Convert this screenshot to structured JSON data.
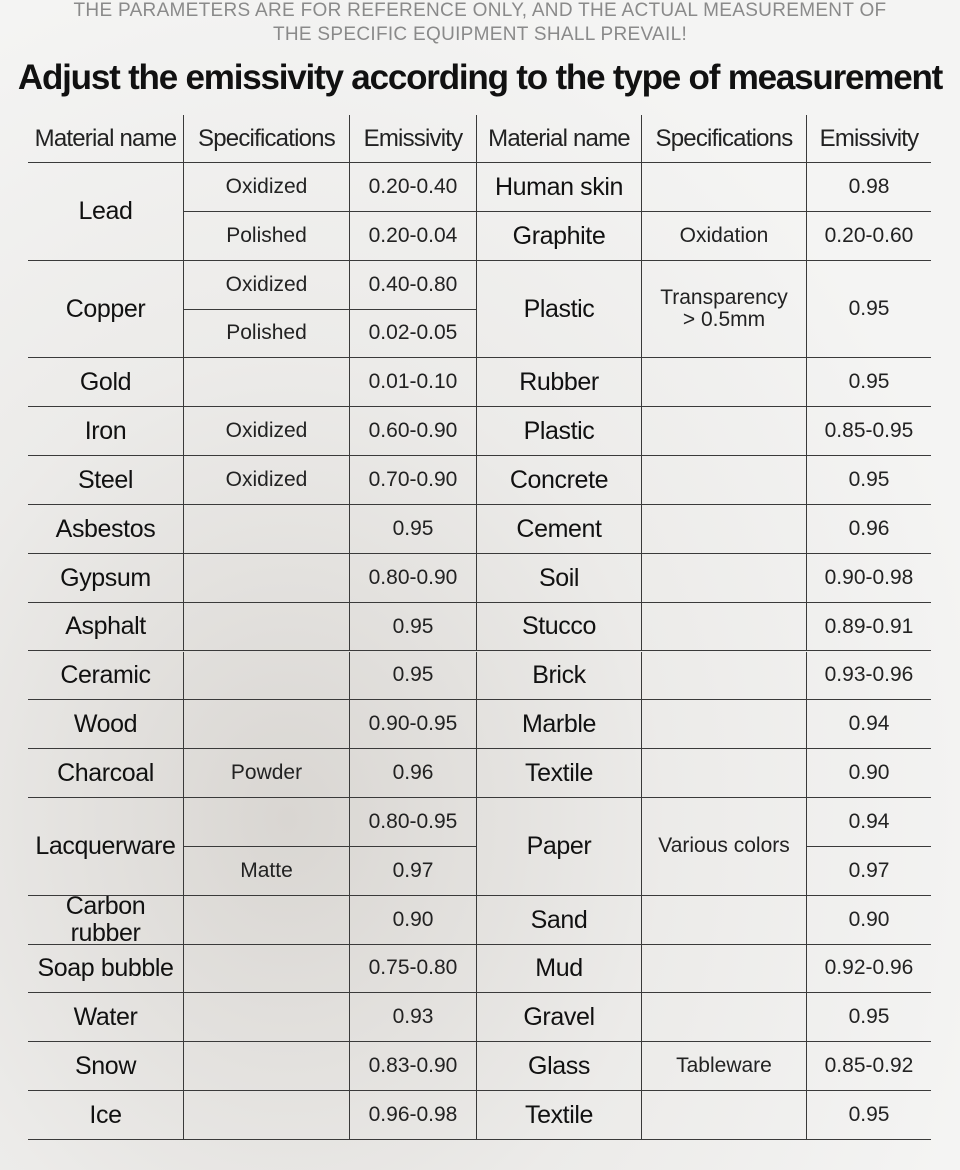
{
  "notice": [
    "THE PARAMETERS ARE FOR REFERENCE ONLY, AND THE ACTUAL MEASUREMENT OF",
    "THE SPECIFIC EQUIPMENT SHALL PREVAIL!"
  ],
  "title": "Adjust the emissivity according to the type of measurement",
  "headers": [
    "Material name",
    "Specifications",
    "Emissivity",
    "Material name",
    "Specifications",
    "Emissivity"
  ],
  "left": [
    {
      "material": "Lead",
      "specs": [
        "Oxidized",
        "Polished"
      ],
      "emissivity": [
        "0.20-0.40",
        "0.20-0.04"
      ]
    },
    {
      "material": "Copper",
      "specs": [
        "Oxidized",
        "Polished"
      ],
      "emissivity": [
        "0.40-0.80",
        "0.02-0.05"
      ]
    },
    {
      "material": "Gold",
      "emissivity": [
        "0.01-0.10"
      ]
    },
    {
      "material": "Iron",
      "specs": [
        "Oxidized"
      ],
      "emissivity": [
        "0.60-0.90"
      ]
    },
    {
      "material": "Steel",
      "specs": [
        "Oxidized"
      ],
      "emissivity": [
        "0.70-0.90"
      ]
    },
    {
      "material": "Asbestos",
      "emissivity": [
        "0.95"
      ]
    },
    {
      "material": "Gypsum",
      "emissivity": [
        "0.80-0.90"
      ]
    },
    {
      "material": "Asphalt",
      "emissivity": [
        "0.95"
      ]
    },
    {
      "material": "Ceramic",
      "emissivity": [
        "0.95"
      ]
    },
    {
      "material": "Wood",
      "emissivity": [
        "0.90-0.95"
      ]
    },
    {
      "material": "Charcoal",
      "specs": [
        "Powder"
      ],
      "emissivity": [
        "0.96"
      ]
    },
    {
      "material": "Lacquerware",
      "specs": [
        null,
        "Matte"
      ],
      "emissivity": [
        "0.80-0.95",
        "0.97"
      ]
    },
    {
      "material": "Carbon rubber",
      "emissivity": [
        "0.90"
      ]
    },
    {
      "material": "Soap bubble",
      "emissivity": [
        "0.75-0.80"
      ]
    },
    {
      "material": "Water",
      "emissivity": [
        "0.93"
      ]
    },
    {
      "material": "Snow",
      "emissivity": [
        "0.83-0.90"
      ]
    },
    {
      "material": "Ice",
      "emissivity": [
        "0.96-0.98"
      ]
    }
  ],
  "right": [
    {
      "material": "Human skin",
      "emissivity": [
        "0.98"
      ]
    },
    {
      "material": "Graphite",
      "specs": [
        "Oxidation"
      ],
      "emissivity": [
        "0.20-0.60"
      ]
    },
    {
      "material": "Plastic",
      "specs": [
        "Transparency\n> 0.5mm"
      ],
      "emissivity": [
        "0.95"
      ]
    },
    {
      "material": "Rubber",
      "emissivity": [
        "0.95"
      ]
    },
    {
      "material": "Plastic",
      "emissivity": [
        "0.85-0.95"
      ]
    },
    {
      "material": "Concrete",
      "emissivity": [
        "0.95"
      ]
    },
    {
      "material": "Cement",
      "emissivity": [
        "0.96"
      ]
    },
    {
      "material": "Soil",
      "emissivity": [
        "0.90-0.98"
      ]
    },
    {
      "material": "Stucco",
      "emissivity": [
        "0.89-0.91"
      ]
    },
    {
      "material": "Brick",
      "emissivity": [
        "0.93-0.96"
      ]
    },
    {
      "material": "Marble",
      "emissivity": [
        "0.94"
      ]
    },
    {
      "material": "Textile",
      "emissivity": [
        "0.90"
      ]
    },
    {
      "material": "Paper",
      "specs": [
        "Various colors"
      ],
      "emissivity": [
        "0.94",
        "0.97"
      ]
    },
    {
      "material": "Sand",
      "emissivity": [
        "0.90"
      ]
    },
    {
      "material": "Mud",
      "emissivity": [
        "0.92-0.96"
      ]
    },
    {
      "material": "Gravel",
      "emissivity": [
        "0.95"
      ]
    },
    {
      "material": "Glass",
      "specs": [
        "Tableware"
      ],
      "emissivity": [
        "0.85-0.92"
      ]
    },
    {
      "material": "Textile",
      "emissivity": [
        "0.95"
      ]
    }
  ]
}
